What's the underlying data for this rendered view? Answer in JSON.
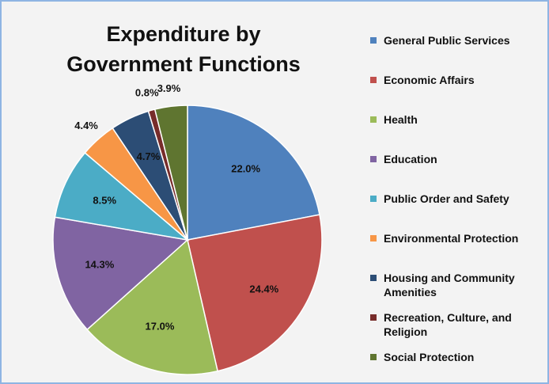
{
  "chart_data": {
    "type": "pie",
    "title": "Expenditure by Government Functions",
    "categories": [
      "General Public Services",
      "Economic Affairs",
      "Health",
      "Education",
      "Public Order and Safety",
      "Environmental Protection",
      "Housing and Community Amenities",
      "Recreation, Culture, and Religion",
      "Social Protection"
    ],
    "values": [
      22.0,
      24.4,
      17.0,
      14.3,
      8.5,
      4.4,
      4.7,
      0.8,
      3.9
    ],
    "value_labels": [
      "22.0%",
      "24.4%",
      "17.0%",
      "14.3%",
      "8.5%",
      "4.4%",
      "4.7%",
      "0.8%",
      "3.9%"
    ],
    "colors": [
      "#4f81bd",
      "#c0504d",
      "#9bbb59",
      "#8064a2",
      "#4bacc6",
      "#f79646",
      "#2c4d75",
      "#772c2a",
      "#5f7530"
    ]
  }
}
